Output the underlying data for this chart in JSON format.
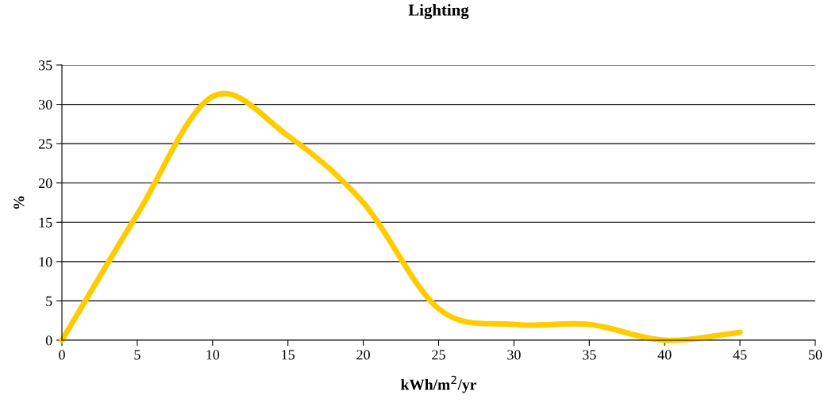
{
  "chart_data": {
    "type": "line",
    "title": "Lighting",
    "xlabel": "kWh/m$^{2}$/yr",
    "ylabel": "%",
    "x": [
      0,
      5,
      10,
      15,
      20,
      25,
      30,
      35,
      40,
      45
    ],
    "series": [
      {
        "color": "#ffcc00",
        "values": [
          0,
          16,
          31,
          26,
          17.5,
          4,
          2,
          2,
          0,
          1
        ]
      }
    ],
    "xlim": [
      0,
      50
    ],
    "xticks": [
      0,
      5,
      10,
      15,
      20,
      25,
      30,
      35,
      40,
      45,
      50
    ],
    "ylim": [
      0,
      35
    ],
    "yticks": [
      0,
      5,
      10,
      15,
      20,
      25,
      30,
      35
    ],
    "grid": "y",
    "marker": "none",
    "line_style": "solid"
  }
}
